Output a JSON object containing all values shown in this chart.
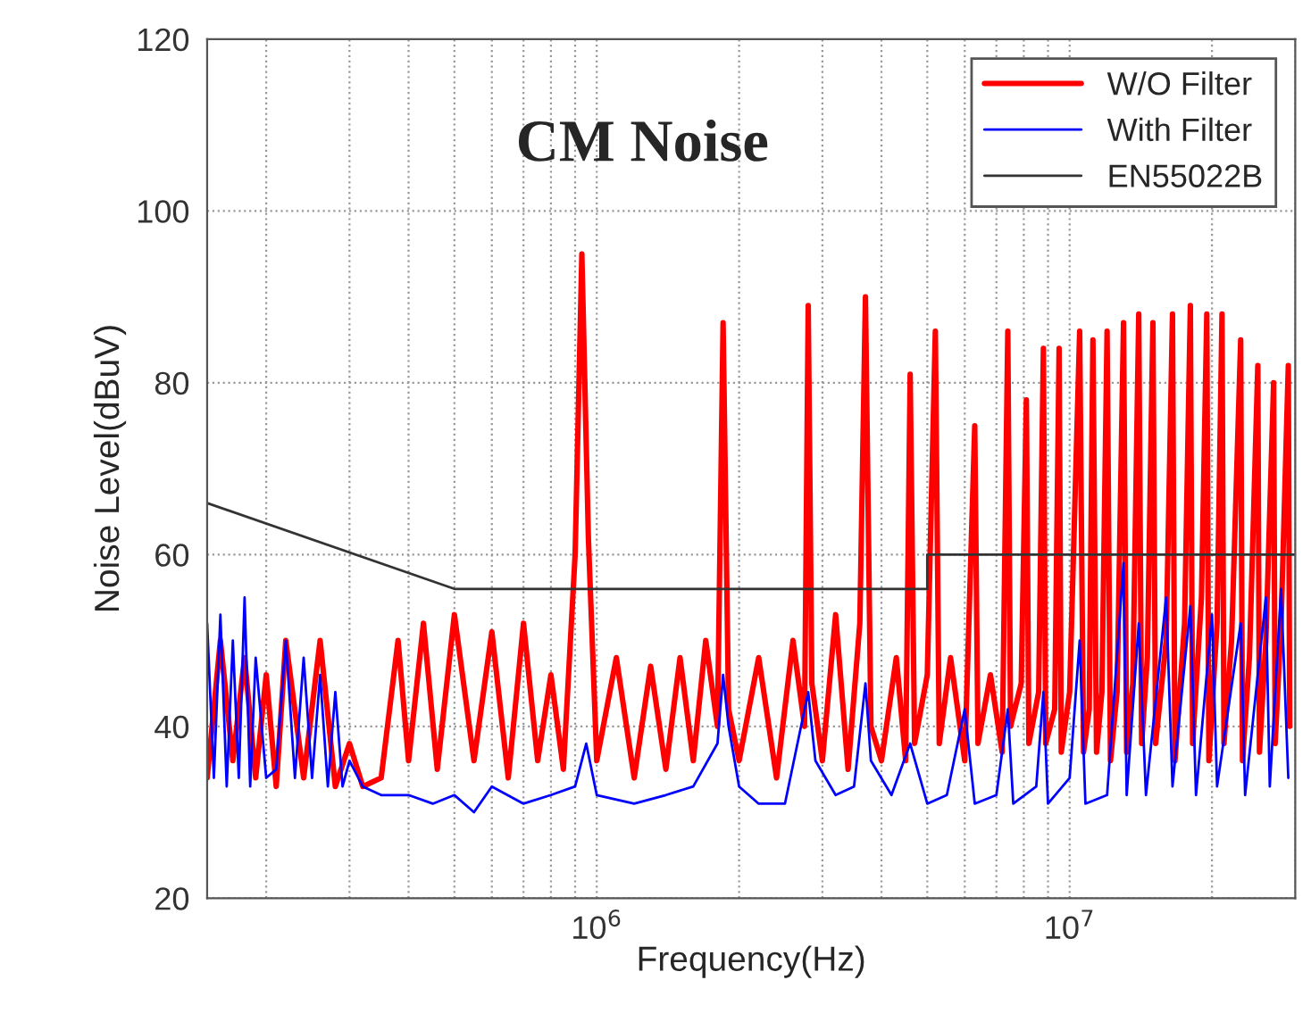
{
  "chart_data": {
    "type": "line",
    "title": "CM Noise",
    "xlabel": "Frequency(Hz)",
    "ylabel": "Noise Level(dBuV)",
    "log": "x",
    "grid": true,
    "legend": "top right",
    "xlim": [
      150000,
      30000000
    ],
    "xticks": [
      {
        "value": 1000000,
        "label": "10$^{6}$"
      },
      {
        "value": 10000000,
        "label": "10$^{7}$"
      }
    ],
    "ylim": [
      20,
      120
    ],
    "yticks": [
      20,
      40,
      60,
      80,
      100,
      120
    ],
    "series": [
      {
        "name": "W/O Filter",
        "color": "#ff0000",
        "x": [
          150000,
          160000,
          170000,
          180000,
          190000,
          200000,
          210000,
          220000,
          240000,
          260000,
          280000,
          300000,
          320000,
          350000,
          380000,
          400000,
          430000,
          460000,
          500000,
          550000,
          600000,
          650000,
          700000,
          750000,
          800000,
          850000,
          900000,
          930000,
          960000,
          1000000,
          1100000,
          1200000,
          1300000,
          1400000,
          1500000,
          1600000,
          1700000,
          1800000,
          1850000,
          1900000,
          2000000,
          2200000,
          2400000,
          2600000,
          2750000,
          2800000,
          2850000,
          3000000,
          3200000,
          3400000,
          3600000,
          3700000,
          3800000,
          4000000,
          4300000,
          4500000,
          4600000,
          4700000,
          5000000,
          5200000,
          5300000,
          5600000,
          6000000,
          6300000,
          6400000,
          6800000,
          7200000,
          7400000,
          7500000,
          7900000,
          8100000,
          8200000,
          8600000,
          8800000,
          8900000,
          9300000,
          9500000,
          9600000,
          10000000,
          10500000,
          10700000,
          11000000,
          11200000,
          11400000,
          11700000,
          12000000,
          12200000,
          12600000,
          13000000,
          13200000,
          13600000,
          14000000,
          14200000,
          14600000,
          15000000,
          15200000,
          16000000,
          16500000,
          16700000,
          17500000,
          18000000,
          18200000,
          19000000,
          19500000,
          19700000,
          20500000,
          21000000,
          21200000,
          22000000,
          23000000,
          23200000,
          24000000,
          25000000,
          25200000,
          26000000,
          27000000,
          27200000,
          28000000,
          29000000,
          29200000
        ],
        "values": [
          34,
          50,
          36,
          48,
          34,
          46,
          33,
          50,
          34,
          50,
          33,
          38,
          33,
          34,
          50,
          36,
          52,
          35,
          53,
          36,
          51,
          34,
          52,
          36,
          46,
          35,
          60,
          95,
          62,
          36,
          48,
          34,
          47,
          35,
          48,
          36,
          50,
          40,
          87,
          42,
          36,
          48,
          34,
          50,
          40,
          89,
          45,
          36,
          53,
          35,
          52,
          90,
          40,
          36,
          48,
          36,
          81,
          38,
          46,
          86,
          38,
          48,
          36,
          75,
          38,
          46,
          37,
          86,
          40,
          45,
          78,
          38,
          44,
          84,
          38,
          42,
          84,
          37,
          44,
          86,
          37,
          42,
          85,
          37,
          44,
          86,
          36,
          44,
          87,
          37,
          45,
          88,
          38,
          48,
          87,
          38,
          50,
          88,
          36,
          52,
          89,
          38,
          55,
          88,
          36,
          52,
          88,
          38,
          50,
          85,
          36,
          48,
          82,
          37,
          50,
          80,
          38,
          52,
          82,
          40
        ]
      },
      {
        "name": "With Filter",
        "color": "#0000ff",
        "x": [
          150000,
          155000,
          160000,
          165000,
          170000,
          175000,
          180000,
          185000,
          190000,
          200000,
          210000,
          220000,
          230000,
          240000,
          250000,
          260000,
          270000,
          280000,
          290000,
          300000,
          320000,
          350000,
          400000,
          450000,
          500000,
          550000,
          600000,
          700000,
          800000,
          900000,
          950000,
          1000000,
          1200000,
          1400000,
          1600000,
          1800000,
          1850000,
          1900000,
          2000000,
          2200000,
          2500000,
          2800000,
          2900000,
          3200000,
          3500000,
          3700000,
          3800000,
          4200000,
          4600000,
          5000000,
          5500000,
          6000000,
          6300000,
          7000000,
          7400000,
          7600000,
          8500000,
          8800000,
          9000000,
          10000000,
          10500000,
          10800000,
          12000000,
          13000000,
          13200000,
          14000000,
          14500000,
          16000000,
          16500000,
          18000000,
          18500000,
          20000000,
          20500000,
          23000000,
          23500000,
          26000000,
          26500000,
          28000000,
          29000000
        ],
        "values": [
          52,
          34,
          53,
          33,
          50,
          34,
          55,
          33,
          48,
          34,
          35,
          50,
          34,
          48,
          34,
          46,
          33,
          44,
          33,
          36,
          33,
          32,
          32,
          31,
          32,
          30,
          33,
          31,
          32,
          33,
          38,
          32,
          31,
          32,
          33,
          38,
          46,
          40,
          33,
          31,
          31,
          44,
          36,
          32,
          33,
          45,
          36,
          32,
          38,
          31,
          32,
          42,
          31,
          32,
          42,
          31,
          33,
          44,
          31,
          34,
          50,
          31,
          32,
          59,
          32,
          52,
          32,
          55,
          33,
          54,
          32,
          53,
          33,
          52,
          32,
          55,
          33,
          56,
          34
        ]
      },
      {
        "name": "EN55022B",
        "color": "#333333",
        "x": [
          150000,
          500000,
          5000000,
          5000000,
          30000000
        ],
        "values": [
          66,
          56,
          56,
          60,
          60
        ]
      }
    ]
  }
}
